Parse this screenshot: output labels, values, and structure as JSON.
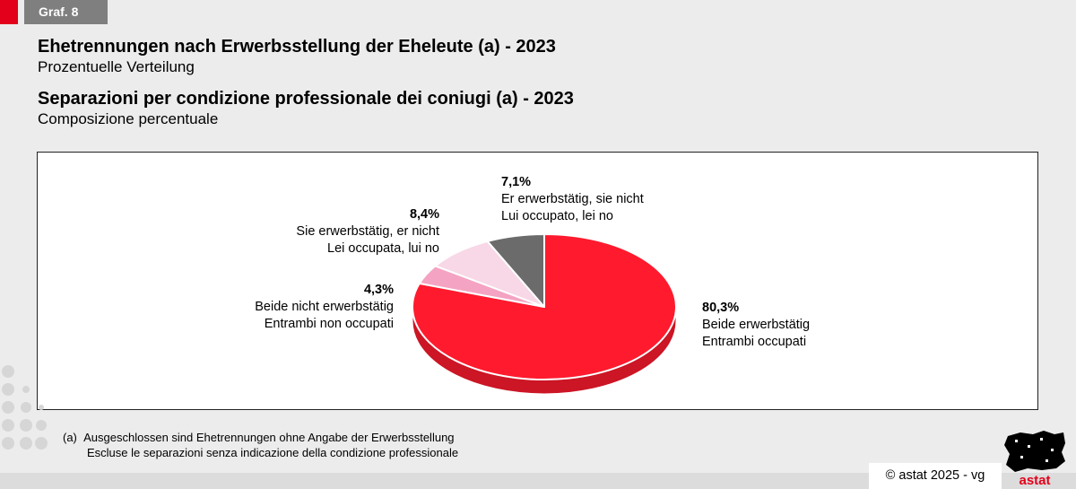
{
  "tag": "Graf. 8",
  "title_de": "Ehetrennungen nach Erwerbsstellung der Eheleute (a) - 2023",
  "subtitle_de": "Prozentuelle Verteilung",
  "title_it": "Separazioni per condizione professionale dei coniugi (a) - 2023",
  "subtitle_it": "Composizione percentuale",
  "chart_data": {
    "type": "pie",
    "title": "Ehetrennungen nach Erwerbsstellung der Eheleute (a) - 2023",
    "unit": "%",
    "slices": [
      {
        "label_de": "Beide erwerbstätig",
        "label_it": "Entrambi occupati",
        "value": 80.3,
        "value_label": "80,3%",
        "color": "#ff1a2e"
      },
      {
        "label_de": "Beide nicht erwerbstätig",
        "label_it": "Entrambi non occupati",
        "value": 4.3,
        "value_label": "4,3%",
        "color": "#f5a3c2"
      },
      {
        "label_de": "Sie erwerbstätig, er nicht",
        "label_it": "Lei occupata, lui no",
        "value": 8.4,
        "value_label": "8,4%",
        "color": "#f8d8e6"
      },
      {
        "label_de": "Er erwerbstätig, sie nicht",
        "label_it": "Lui occupato, lei no",
        "value": 7.1,
        "value_label": "7,1%",
        "color": "#6b6b6b"
      }
    ]
  },
  "footnote": {
    "mark": "(a)",
    "line_de": "Ausgeschlossen sind Ehetrennungen ohne Angabe der Erwerbsstellung",
    "line_it": "Escluse le separazioni senza indicazione della condizione professionale"
  },
  "copyright": "©  astat 2025 - vg",
  "logo_text": "astat"
}
